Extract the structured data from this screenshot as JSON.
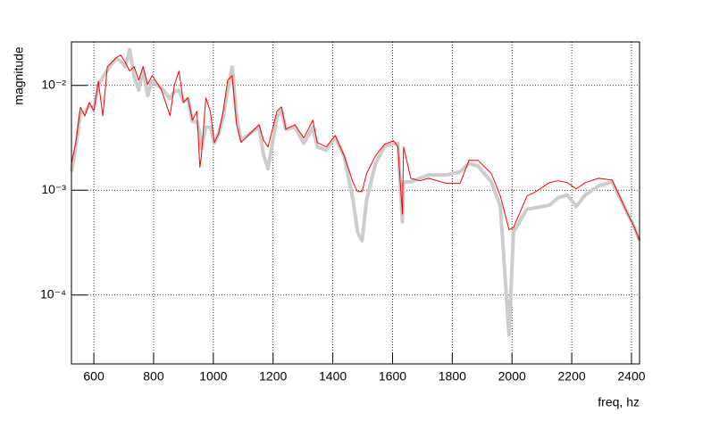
{
  "chart_data": {
    "type": "line",
    "x_label": "freq, hz",
    "y_label": "magnitude",
    "log_y": true,
    "grid": true,
    "xlim": [
      525,
      2427
    ],
    "xticks": [
      600,
      800,
      1000,
      1200,
      1400,
      1600,
      1800,
      2000,
      2200,
      2400
    ],
    "ylim": [
      2.2e-05,
      0.026
    ],
    "yticks": [
      {
        "value": 0.0001,
        "label": "10⁻⁴"
      },
      {
        "value": 0.001,
        "label": "10⁻³"
      },
      {
        "value": 0.01,
        "label": "10⁻²"
      }
    ],
    "x": [
      525,
      540,
      555,
      570,
      585,
      600,
      615,
      630,
      645,
      660,
      675,
      690,
      705,
      720,
      735,
      750,
      765,
      780,
      795,
      825,
      855,
      870,
      885,
      900,
      915,
      930,
      945,
      955,
      960,
      975,
      990,
      1003,
      1018,
      1033,
      1048,
      1063,
      1078,
      1093,
      1123,
      1153,
      1168,
      1183,
      1213,
      1228,
      1243,
      1273,
      1303,
      1333,
      1348,
      1378,
      1408,
      1438,
      1468,
      1483,
      1498,
      1513,
      1543,
      1573,
      1603,
      1618,
      1633,
      1637,
      1661,
      1691,
      1721,
      1781,
      1826,
      1856,
      1886,
      1931,
      1961,
      1990,
      2005,
      2050,
      2080,
      2125,
      2155,
      2185,
      2215,
      2245,
      2290,
      2335,
      2380,
      2410,
      2427
    ],
    "series": [
      {
        "color": "#cccccc",
        "width": 4,
        "values": [
          0.0015,
          0.0026,
          0.0055,
          0.0055,
          0.0065,
          0.006,
          0.01,
          0.012,
          0.014,
          0.016,
          0.018,
          0.017,
          0.015,
          0.022,
          0.012,
          0.009,
          0.014,
          0.008,
          0.011,
          0.0095,
          0.0075,
          0.0088,
          0.009,
          0.007,
          0.0075,
          0.0045,
          0.0045,
          0.0035,
          0.0025,
          0.004,
          0.004,
          0.0028,
          0.0035,
          0.005,
          0.009,
          0.015,
          0.005,
          0.003,
          0.0035,
          0.004,
          0.0022,
          0.0016,
          0.005,
          0.0058,
          0.0038,
          0.004,
          0.0028,
          0.004,
          0.0026,
          0.0024,
          0.0032,
          0.0021,
          0.0008,
          0.0004,
          0.00033,
          0.0008,
          0.0018,
          0.0026,
          0.0028,
          0.0028,
          0.0005,
          0.0012,
          0.0012,
          0.0013,
          0.0014,
          0.0014,
          0.0015,
          0.0018,
          0.0017,
          0.0012,
          0.0007,
          4.2e-05,
          0.0004,
          0.00066,
          0.00068,
          0.00072,
          0.00085,
          0.0009,
          0.0007,
          0.0009,
          0.0011,
          0.0012,
          0.00066,
          0.00044,
          0.00033
        ]
      },
      {
        "color": "#ff0000",
        "width": 1,
        "values": [
          0.0018,
          0.0029,
          0.0062,
          0.0051,
          0.0069,
          0.0057,
          0.011,
          0.0051,
          0.015,
          0.0166,
          0.0184,
          0.0195,
          0.0166,
          0.0137,
          0.0151,
          0.0112,
          0.0151,
          0.0102,
          0.0124,
          0.00925,
          0.00514,
          0.0102,
          0.0137,
          0.00689,
          0.0076,
          0.00466,
          0.00566,
          0.00165,
          0.00213,
          0.0076,
          0.00566,
          0.00285,
          0.00347,
          0.00566,
          0.0112,
          0.0124,
          0.00422,
          0.00285,
          0.00347,
          0.00422,
          0.003,
          0.00259,
          0.00566,
          0.00625,
          0.00383,
          0.00422,
          0.00315,
          0.00466,
          0.00285,
          0.00259,
          0.00333,
          0.00213,
          0.00118,
          0.00097,
          0.00097,
          0.00144,
          0.00213,
          0.00274,
          0.00297,
          0.00259,
          0.00059,
          0.00259,
          0.0013,
          0.00123,
          0.0013,
          0.00116,
          0.00116,
          0.00193,
          0.00193,
          0.00144,
          0.00088,
          0.00042,
          0.00044,
          0.00088,
          0.00097,
          0.00118,
          0.00123,
          0.00118,
          0.00103,
          0.00118,
          0.0013,
          0.00125,
          0.00066,
          0.00044,
          0.00033
        ]
      }
    ]
  }
}
